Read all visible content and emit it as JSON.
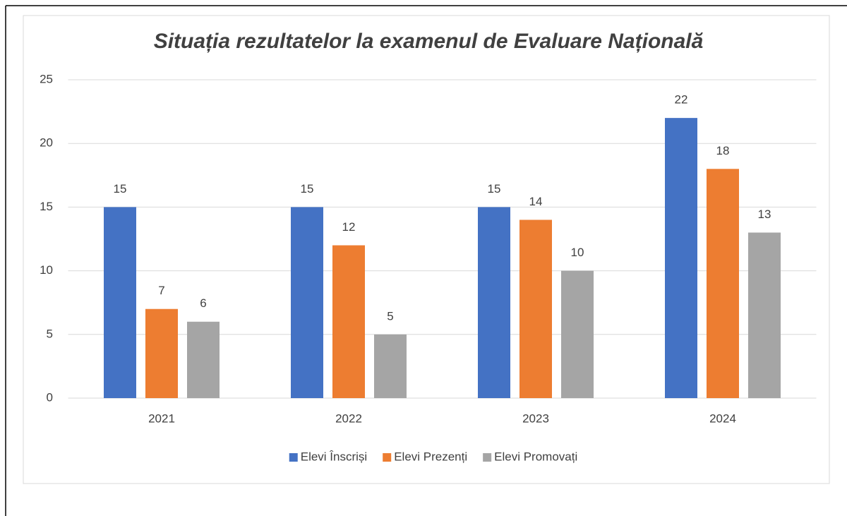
{
  "chart_data": {
    "type": "bar",
    "title": "Situația rezultatelor la examenul de Evaluare Națională",
    "categories": [
      "2021",
      "2022",
      "2023",
      "2024"
    ],
    "series": [
      {
        "name": "Elevi Înscriși",
        "color": "#4472c4",
        "values": [
          15,
          15,
          15,
          22
        ]
      },
      {
        "name": "Elevi Prezenți",
        "color": "#ed7d31",
        "values": [
          7,
          12,
          14,
          18
        ]
      },
      {
        "name": "Elevi Promovați",
        "color": "#a5a5a5",
        "values": [
          6,
          5,
          10,
          13
        ]
      }
    ],
    "ylim": [
      0,
      25
    ],
    "yticks": [
      0,
      5,
      10,
      15,
      20,
      25
    ],
    "grid": true,
    "legend": "bottom"
  }
}
